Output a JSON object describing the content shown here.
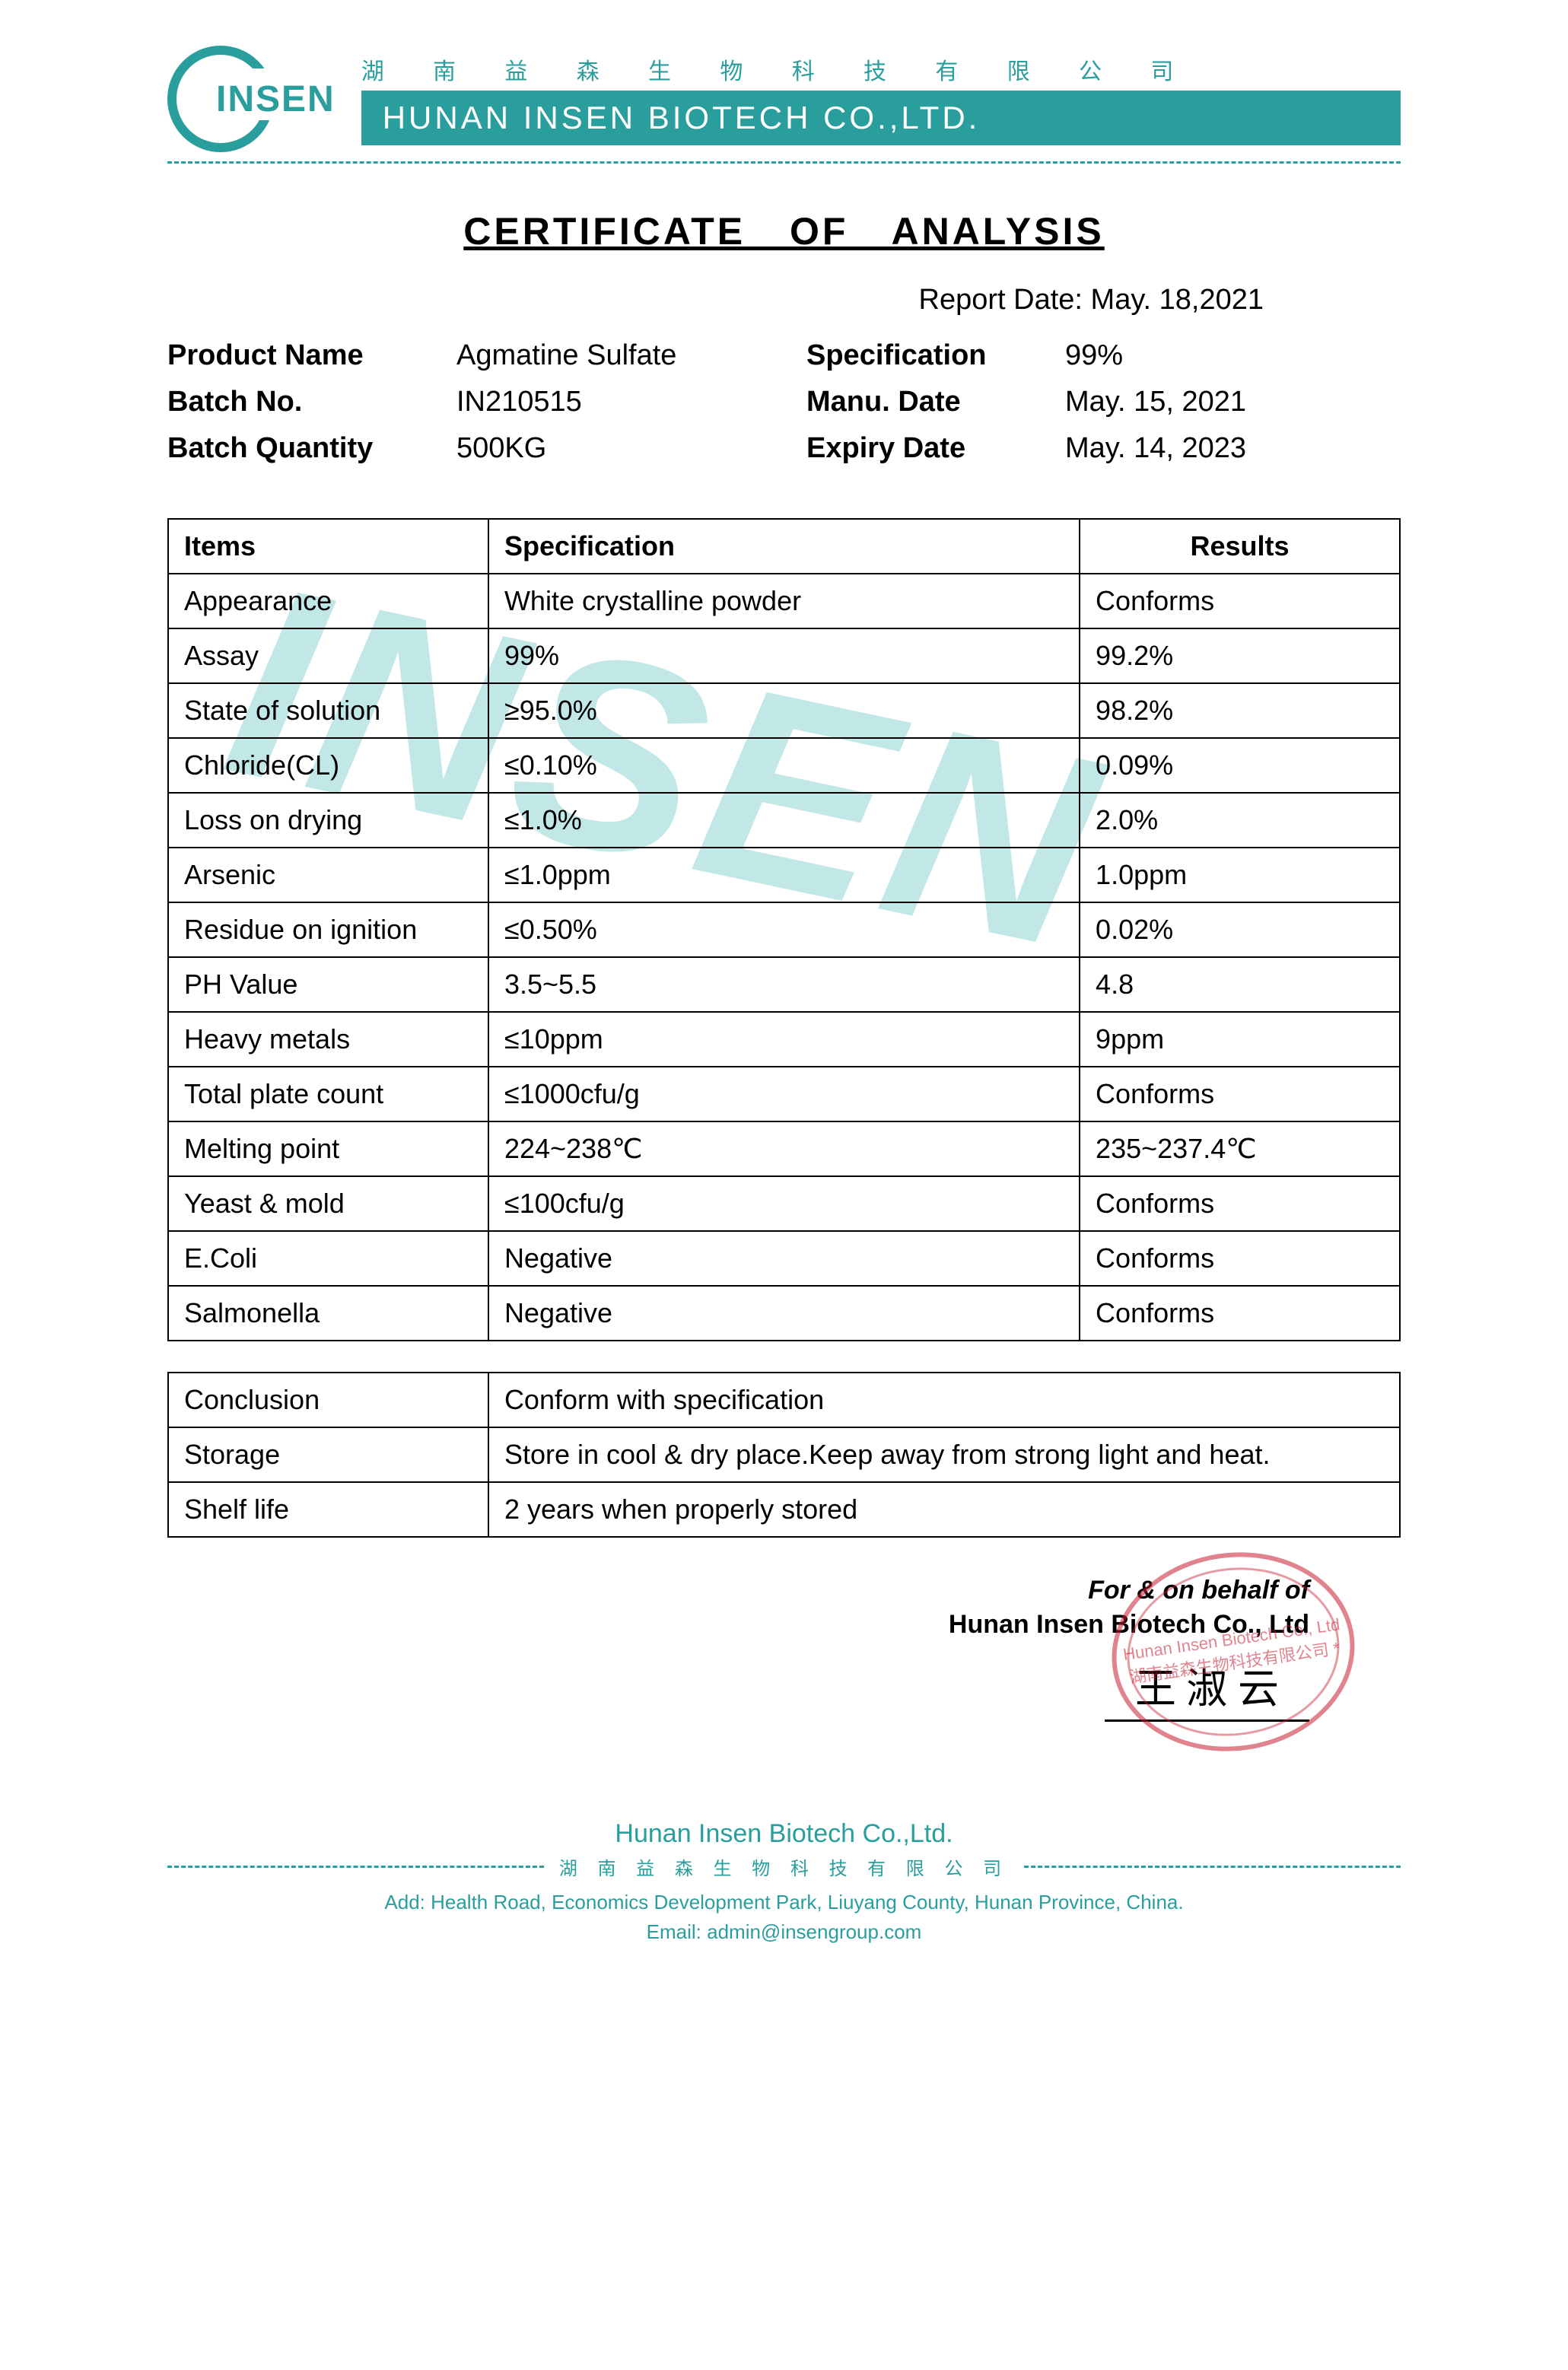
{
  "colors": {
    "brand": "#2a9d9d",
    "stamp": "rgba(200,30,50,0.55)",
    "watermark": "rgba(78,186,186,0.35)",
    "text": "#000000",
    "table_border": "#000000",
    "background": "#ffffff"
  },
  "header": {
    "logo_text": "INSEN",
    "company_cn": "湖 南 益 森 生 物 科 技 有 限 公 司",
    "company_en": "HUNAN INSEN BIOTECH CO.,LTD."
  },
  "title": "CERTIFICATE OF ANALYSIS",
  "report_date_label": "Report Date:",
  "report_date_value": "May. 18,2021",
  "meta": {
    "product_name_label": "Product Name",
    "product_name_value": "Agmatine Sulfate",
    "specification_label": "Specification",
    "specification_value": "99%",
    "batch_no_label": "Batch No.",
    "batch_no_value": "IN210515",
    "manu_date_label": "Manu. Date",
    "manu_date_value": "May. 15, 2021",
    "batch_qty_label": "Batch Quantity",
    "batch_qty_value": "500KG",
    "expiry_date_label": "Expiry Date",
    "expiry_date_value": "May. 14, 2023"
  },
  "watermark_text": "INSEN",
  "spec_table": {
    "headers": [
      "Items",
      "Specification",
      "Results"
    ],
    "rows": [
      [
        "Appearance",
        "White crystalline powder",
        "Conforms"
      ],
      [
        "Assay",
        "99%",
        "99.2%"
      ],
      [
        "State of solution",
        "≥95.0%",
        "98.2%"
      ],
      [
        "Chloride(CL)",
        "≤0.10%",
        "0.09%"
      ],
      [
        "Loss on drying",
        "≤1.0%",
        "2.0%"
      ],
      [
        "Arsenic",
        "≤1.0ppm",
        "1.0ppm"
      ],
      [
        "Residue on ignition",
        "≤0.50%",
        "0.02%"
      ],
      [
        "PH Value",
        "3.5~5.5",
        "4.8"
      ],
      [
        "Heavy metals",
        "≤10ppm",
        "9ppm"
      ],
      [
        "Total plate count",
        "≤1000cfu/g",
        "Conforms"
      ],
      [
        "Melting point",
        "224~238℃",
        "235~237.4℃"
      ],
      [
        "Yeast & mold",
        "≤100cfu/g",
        "Conforms"
      ],
      [
        "E.Coli",
        "Negative",
        "Conforms"
      ],
      [
        "Salmonella",
        "Negative",
        "Conforms"
      ]
    ]
  },
  "conclusion_table": {
    "rows": [
      [
        "Conclusion",
        "Conform with specification"
      ],
      [
        "Storage",
        "Store in cool & dry place.Keep away from strong light and heat."
      ],
      [
        "Shelf life",
        "2 years when properly stored"
      ]
    ]
  },
  "signature": {
    "for_line": "For & on behalf of",
    "company_line": "Hunan Insen Biotech Co., Ltd",
    "handwriting": "王 淑 云",
    "stamp_text": "Hunan Insen Biotech Co., Ltd 湖南益森生物科技有限公司 *"
  },
  "footer": {
    "company": "Hunan Insen Biotech Co.,Ltd.",
    "company_cn": "湖 南 益 森 生 物 科 技 有 限 公 司",
    "address": "Add: Health Road, Economics Development Park, Liuyang County, Hunan Province, China.",
    "email": "Email: admin@insengroup.com"
  }
}
